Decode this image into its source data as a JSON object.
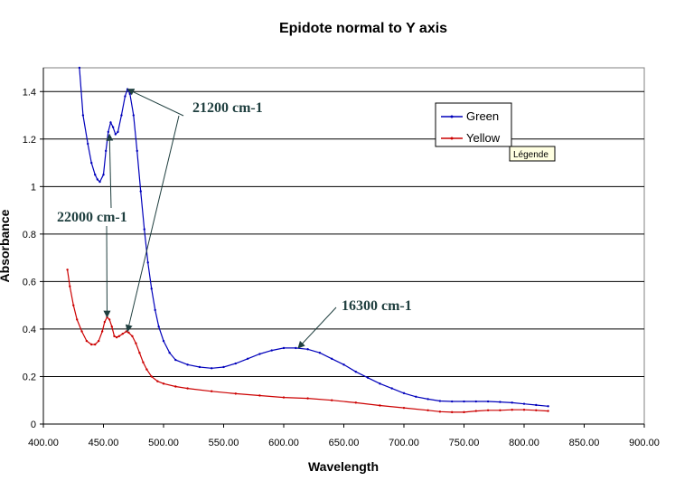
{
  "chart_data": {
    "type": "line",
    "title": "Epidote normal to Y axis",
    "xlabel": "Wavelength",
    "ylabel": "Absorbance",
    "xlim": [
      400,
      900
    ],
    "ylim": [
      0,
      1.5
    ],
    "x_ticks": [
      "400.00",
      "450.00",
      "500.00",
      "550.00",
      "600.00",
      "650.00",
      "700.00",
      "750.00",
      "800.00",
      "850.00",
      "900.00"
    ],
    "y_ticks": [
      "0",
      "0.2",
      "0.4",
      "0.6",
      "0.8",
      "1",
      "1.2",
      "1.4"
    ],
    "grid": "horizontal",
    "legend_position": "top-right",
    "series": [
      {
        "name": "Green",
        "color": "#0000bb",
        "points": [
          [
            430,
            1.5
          ],
          [
            433,
            1.3
          ],
          [
            437,
            1.18
          ],
          [
            440,
            1.1
          ],
          [
            443,
            1.05
          ],
          [
            445,
            1.03
          ],
          [
            447,
            1.02
          ],
          [
            450,
            1.05
          ],
          [
            452,
            1.15
          ],
          [
            454,
            1.23
          ],
          [
            456,
            1.27
          ],
          [
            458,
            1.25
          ],
          [
            460,
            1.22
          ],
          [
            462,
            1.23
          ],
          [
            465,
            1.3
          ],
          [
            468,
            1.38
          ],
          [
            470,
            1.41
          ],
          [
            472,
            1.39
          ],
          [
            475,
            1.3
          ],
          [
            478,
            1.15
          ],
          [
            481,
            0.98
          ],
          [
            484,
            0.82
          ],
          [
            487,
            0.68
          ],
          [
            490,
            0.57
          ],
          [
            493,
            0.48
          ],
          [
            496,
            0.41
          ],
          [
            500,
            0.35
          ],
          [
            505,
            0.3
          ],
          [
            510,
            0.27
          ],
          [
            520,
            0.25
          ],
          [
            530,
            0.24
          ],
          [
            540,
            0.235
          ],
          [
            550,
            0.24
          ],
          [
            560,
            0.255
          ],
          [
            570,
            0.275
          ],
          [
            580,
            0.295
          ],
          [
            590,
            0.31
          ],
          [
            600,
            0.32
          ],
          [
            610,
            0.32
          ],
          [
            620,
            0.315
          ],
          [
            630,
            0.3
          ],
          [
            640,
            0.275
          ],
          [
            650,
            0.25
          ],
          [
            660,
            0.22
          ],
          [
            670,
            0.195
          ],
          [
            680,
            0.17
          ],
          [
            690,
            0.15
          ],
          [
            700,
            0.13
          ],
          [
            710,
            0.115
          ],
          [
            720,
            0.105
          ],
          [
            730,
            0.097
          ],
          [
            740,
            0.095
          ],
          [
            750,
            0.095
          ],
          [
            760,
            0.095
          ],
          [
            770,
            0.095
          ],
          [
            780,
            0.093
          ],
          [
            790,
            0.09
          ],
          [
            800,
            0.085
          ],
          [
            810,
            0.08
          ],
          [
            820,
            0.075
          ]
        ]
      },
      {
        "name": "Yellow",
        "color": "#cc0000",
        "points": [
          [
            420,
            0.65
          ],
          [
            422,
            0.58
          ],
          [
            425,
            0.5
          ],
          [
            428,
            0.44
          ],
          [
            432,
            0.39
          ],
          [
            436,
            0.35
          ],
          [
            440,
            0.335
          ],
          [
            443,
            0.335
          ],
          [
            446,
            0.35
          ],
          [
            449,
            0.39
          ],
          [
            451,
            0.43
          ],
          [
            453,
            0.45
          ],
          [
            455,
            0.44
          ],
          [
            457,
            0.41
          ],
          [
            459,
            0.37
          ],
          [
            461,
            0.365
          ],
          [
            463,
            0.37
          ],
          [
            466,
            0.38
          ],
          [
            469,
            0.39
          ],
          [
            471,
            0.385
          ],
          [
            474,
            0.37
          ],
          [
            477,
            0.34
          ],
          [
            480,
            0.3
          ],
          [
            483,
            0.26
          ],
          [
            486,
            0.23
          ],
          [
            490,
            0.2
          ],
          [
            495,
            0.18
          ],
          [
            500,
            0.17
          ],
          [
            510,
            0.158
          ],
          [
            520,
            0.15
          ],
          [
            540,
            0.138
          ],
          [
            560,
            0.128
          ],
          [
            580,
            0.12
          ],
          [
            600,
            0.112
          ],
          [
            620,
            0.108
          ],
          [
            640,
            0.1
          ],
          [
            660,
            0.09
          ],
          [
            680,
            0.078
          ],
          [
            700,
            0.068
          ],
          [
            720,
            0.058
          ],
          [
            730,
            0.052
          ],
          [
            740,
            0.05
          ],
          [
            750,
            0.05
          ],
          [
            760,
            0.055
          ],
          [
            770,
            0.058
          ],
          [
            780,
            0.058
          ],
          [
            790,
            0.06
          ],
          [
            800,
            0.06
          ],
          [
            810,
            0.058
          ],
          [
            820,
            0.055
          ]
        ]
      }
    ],
    "annotations": [
      {
        "text": "21200 cm-1",
        "points_to_x": [
          470,
          470
        ],
        "points_to_y": [
          1.41,
          0.39
        ]
      },
      {
        "text": "22000 cm-1",
        "points_to_x": [
          455,
          453
        ],
        "points_to_y": [
          1.22,
          0.45
        ]
      },
      {
        "text": "16300 cm-1",
        "points_to_x": [
          612
        ],
        "points_to_y": [
          0.32
        ]
      }
    ]
  },
  "legend_tooltip": "Légende"
}
